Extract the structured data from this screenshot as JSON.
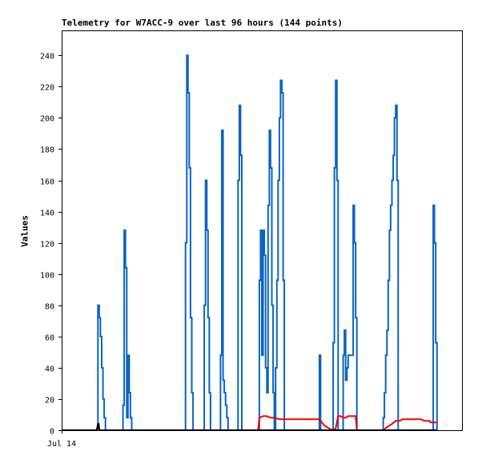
{
  "chart_data": {
    "type": "line",
    "title": "Telemetry for W7ACC-9 over last 96 hours (144 points)",
    "xlabel": "",
    "ylabel": "Values",
    "x_tick_labels": [
      "Jul 14"
    ],
    "y_ticks": [
      0,
      20,
      40,
      60,
      80,
      100,
      120,
      140,
      160,
      180,
      200,
      220,
      240
    ],
    "ylim": [
      0,
      256
    ],
    "xlim": [
      0,
      96
    ],
    "grid": false,
    "legend": "none",
    "series": [
      {
        "color": "#0b64c0",
        "points": [
          [
            0,
            0
          ],
          [
            8.7,
            0
          ],
          [
            8.7,
            80
          ],
          [
            9.0,
            80
          ],
          [
            9.0,
            72
          ],
          [
            9.3,
            72
          ],
          [
            9.3,
            60
          ],
          [
            9.6,
            60
          ],
          [
            9.6,
            40
          ],
          [
            9.9,
            40
          ],
          [
            9.9,
            20
          ],
          [
            10.2,
            20
          ],
          [
            10.2,
            8
          ],
          [
            10.5,
            8
          ],
          [
            10.5,
            0
          ],
          [
            14.7,
            0
          ],
          [
            14.7,
            16
          ],
          [
            15.0,
            16
          ],
          [
            15.0,
            128
          ],
          [
            15.3,
            128
          ],
          [
            15.3,
            104
          ],
          [
            15.6,
            104
          ],
          [
            15.6,
            8
          ],
          [
            15.9,
            8
          ],
          [
            15.9,
            48
          ],
          [
            16.2,
            48
          ],
          [
            16.2,
            24
          ],
          [
            16.5,
            24
          ],
          [
            16.5,
            8
          ],
          [
            16.8,
            8
          ],
          [
            16.8,
            0
          ],
          [
            29.7,
            0
          ],
          [
            29.7,
            120
          ],
          [
            30.0,
            120
          ],
          [
            30.0,
            240
          ],
          [
            30.3,
            240
          ],
          [
            30.3,
            216
          ],
          [
            30.6,
            216
          ],
          [
            30.6,
            168
          ],
          [
            30.9,
            168
          ],
          [
            30.9,
            72
          ],
          [
            31.2,
            72
          ],
          [
            31.2,
            24
          ],
          [
            31.5,
            24
          ],
          [
            31.5,
            0
          ],
          [
            34.2,
            0
          ],
          [
            34.2,
            80
          ],
          [
            34.5,
            80
          ],
          [
            34.5,
            160
          ],
          [
            34.8,
            160
          ],
          [
            34.8,
            128
          ],
          [
            35.1,
            128
          ],
          [
            35.1,
            72
          ],
          [
            35.4,
            72
          ],
          [
            35.4,
            24
          ],
          [
            35.7,
            24
          ],
          [
            35.7,
            0
          ],
          [
            38.1,
            0
          ],
          [
            38.1,
            48
          ],
          [
            38.4,
            48
          ],
          [
            38.4,
            192
          ],
          [
            38.7,
            192
          ],
          [
            38.7,
            32
          ],
          [
            39.0,
            32
          ],
          [
            39.0,
            24
          ],
          [
            39.3,
            24
          ],
          [
            39.3,
            16
          ],
          [
            39.6,
            16
          ],
          [
            39.6,
            8
          ],
          [
            39.9,
            8
          ],
          [
            39.9,
            0
          ],
          [
            42.3,
            0
          ],
          [
            42.3,
            160
          ],
          [
            42.6,
            160
          ],
          [
            42.6,
            208
          ],
          [
            42.9,
            208
          ],
          [
            42.9,
            176
          ],
          [
            43.2,
            176
          ],
          [
            43.2,
            0
          ],
          [
            47.4,
            0
          ],
          [
            47.4,
            96
          ],
          [
            47.7,
            96
          ],
          [
            47.7,
            128
          ],
          [
            48.0,
            128
          ],
          [
            48.0,
            48
          ],
          [
            48.3,
            48
          ],
          [
            48.3,
            128
          ],
          [
            48.6,
            128
          ],
          [
            48.6,
            112
          ],
          [
            48.9,
            112
          ],
          [
            48.9,
            40
          ],
          [
            49.2,
            40
          ],
          [
            49.2,
            24
          ],
          [
            49.5,
            24
          ],
          [
            49.5,
            144
          ],
          [
            49.8,
            144
          ],
          [
            49.8,
            192
          ],
          [
            50.1,
            192
          ],
          [
            50.1,
            168
          ],
          [
            50.4,
            168
          ],
          [
            50.4,
            80
          ],
          [
            50.7,
            80
          ],
          [
            50.7,
            24
          ],
          [
            51.0,
            24
          ],
          [
            51.0,
            0
          ],
          [
            51.3,
            0
          ],
          [
            51.3,
            40
          ],
          [
            51.6,
            40
          ],
          [
            51.6,
            96
          ],
          [
            51.9,
            96
          ],
          [
            51.9,
            160
          ],
          [
            52.2,
            160
          ],
          [
            52.2,
            200
          ],
          [
            52.5,
            200
          ],
          [
            52.5,
            224
          ],
          [
            52.8,
            224
          ],
          [
            52.8,
            216
          ],
          [
            53.1,
            216
          ],
          [
            53.1,
            96
          ],
          [
            53.4,
            96
          ],
          [
            53.4,
            0
          ],
          [
            61.8,
            0
          ],
          [
            61.8,
            48
          ],
          [
            62.1,
            48
          ],
          [
            62.1,
            0
          ],
          [
            65.1,
            0
          ],
          [
            65.1,
            56
          ],
          [
            65.4,
            56
          ],
          [
            65.4,
            168
          ],
          [
            65.7,
            168
          ],
          [
            65.7,
            224
          ],
          [
            66.0,
            224
          ],
          [
            66.0,
            160
          ],
          [
            66.3,
            160
          ],
          [
            66.3,
            0
          ],
          [
            67.5,
            0
          ],
          [
            67.5,
            48
          ],
          [
            67.8,
            48
          ],
          [
            67.8,
            64
          ],
          [
            68.1,
            64
          ],
          [
            68.1,
            32
          ],
          [
            68.4,
            32
          ],
          [
            68.4,
            40
          ],
          [
            68.7,
            40
          ],
          [
            68.7,
            48
          ],
          [
            69.9,
            48
          ],
          [
            69.9,
            144
          ],
          [
            70.2,
            144
          ],
          [
            70.2,
            120
          ],
          [
            70.5,
            120
          ],
          [
            70.5,
            72
          ],
          [
            70.8,
            72
          ],
          [
            70.8,
            0
          ],
          [
            77.1,
            0
          ],
          [
            77.1,
            8
          ],
          [
            77.4,
            8
          ],
          [
            77.4,
            24
          ],
          [
            77.7,
            24
          ],
          [
            77.7,
            48
          ],
          [
            78.0,
            48
          ],
          [
            78.0,
            64
          ],
          [
            78.3,
            64
          ],
          [
            78.3,
            96
          ],
          [
            78.6,
            96
          ],
          [
            78.6,
            128
          ],
          [
            78.9,
            128
          ],
          [
            78.9,
            144
          ],
          [
            79.2,
            144
          ],
          [
            79.2,
            160
          ],
          [
            79.5,
            160
          ],
          [
            79.5,
            176
          ],
          [
            79.8,
            176
          ],
          [
            79.8,
            200
          ],
          [
            80.1,
            200
          ],
          [
            80.1,
            208
          ],
          [
            80.4,
            208
          ],
          [
            80.4,
            160
          ],
          [
            80.7,
            160
          ],
          [
            80.7,
            0
          ],
          [
            89.1,
            0
          ],
          [
            89.1,
            144
          ],
          [
            89.4,
            144
          ],
          [
            89.4,
            120
          ],
          [
            89.7,
            120
          ],
          [
            89.7,
            56
          ],
          [
            90.0,
            56
          ],
          [
            90.0,
            0
          ]
        ]
      },
      {
        "color": "#f20000",
        "points": [
          [
            0,
            0
          ],
          [
            47.1,
            0
          ],
          [
            47.4,
            8
          ],
          [
            48.3,
            9
          ],
          [
            49.2,
            9
          ],
          [
            50.1,
            8
          ],
          [
            51.0,
            8
          ],
          [
            52.2,
            7
          ],
          [
            53.4,
            7
          ],
          [
            61.8,
            7
          ],
          [
            62.4,
            5
          ],
          [
            63.0,
            3
          ],
          [
            64.2,
            1
          ],
          [
            65.1,
            0
          ],
          [
            65.7,
            1
          ],
          [
            66.3,
            9
          ],
          [
            66.9,
            9
          ],
          [
            67.5,
            8
          ],
          [
            68.1,
            8
          ],
          [
            68.7,
            9
          ],
          [
            69.3,
            9
          ],
          [
            70.5,
            9
          ],
          [
            70.8,
            0
          ],
          [
            77.1,
            0
          ],
          [
            78.0,
            2
          ],
          [
            79.2,
            4
          ],
          [
            80.1,
            6
          ],
          [
            81.0,
            6
          ],
          [
            81.9,
            7
          ],
          [
            86.1,
            7
          ],
          [
            87.0,
            6
          ],
          [
            88.2,
            6
          ],
          [
            88.5,
            5
          ],
          [
            90.0,
            5
          ]
        ]
      },
      {
        "color": "#000000",
        "points": [
          [
            0,
            0
          ],
          [
            8.4,
            0
          ],
          [
            8.7,
            4
          ],
          [
            8.9,
            4
          ],
          [
            9.0,
            0
          ],
          [
            90.0,
            0
          ]
        ]
      }
    ]
  }
}
